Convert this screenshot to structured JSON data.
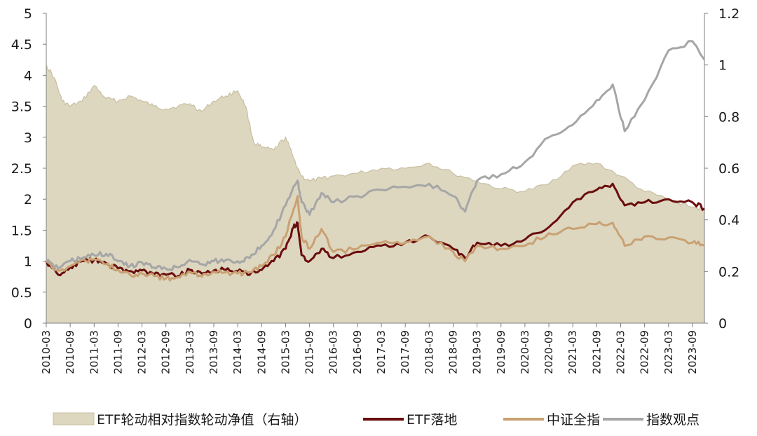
{
  "chart_data": {
    "type": "line",
    "title": "",
    "xlabel": "",
    "ylabel": "",
    "ylim": [
      0,
      5
    ],
    "y2lim": [
      0,
      1.2
    ],
    "yticks": [
      "0",
      "0.5",
      "1",
      "1.5",
      "2",
      "2.5",
      "3",
      "3.5",
      "4",
      "4.5",
      "5"
    ],
    "y2ticks": [
      "0",
      "0.2",
      "0.4",
      "0.6",
      "0.8",
      "1",
      "1.2"
    ],
    "xticks": [
      "2010-03",
      "2010-09",
      "2011-03",
      "2011-09",
      "2012-03",
      "2012-09",
      "2013-03",
      "2013-09",
      "2014-03",
      "2014-09",
      "2015-03",
      "2015-09",
      "2016-03",
      "2016-09",
      "2017-03",
      "2017-09",
      "2018-03",
      "2018-09",
      "2019-03",
      "2019-09",
      "2020-03",
      "2020-09",
      "2021-03",
      "2021-09",
      "2022-03",
      "2022-09",
      "2023-03",
      "2023-09"
    ],
    "legend_position": "bottom",
    "series": [
      {
        "name": "ETF轮动相对指数轮动净值（右轴）",
        "type": "area",
        "axis": "right",
        "color": "#ddd7c0",
        "edge_color": "#c8bfa2",
        "points": [
          [
            "2010-03",
            1.0
          ],
          [
            "2010-05",
            0.95
          ],
          [
            "2010-07",
            0.86
          ],
          [
            "2010-09",
            0.84
          ],
          [
            "2010-12",
            0.86
          ],
          [
            "2011-03",
            0.92
          ],
          [
            "2011-06",
            0.87
          ],
          [
            "2011-09",
            0.86
          ],
          [
            "2011-12",
            0.88
          ],
          [
            "2012-03",
            0.86
          ],
          [
            "2012-06",
            0.84
          ],
          [
            "2012-09",
            0.83
          ],
          [
            "2012-12",
            0.84
          ],
          [
            "2013-03",
            0.85
          ],
          [
            "2013-06",
            0.82
          ],
          [
            "2013-09",
            0.86
          ],
          [
            "2013-12",
            0.88
          ],
          [
            "2014-03",
            0.9
          ],
          [
            "2014-05",
            0.84
          ],
          [
            "2014-07",
            0.7
          ],
          [
            "2014-09",
            0.68
          ],
          [
            "2014-12",
            0.67
          ],
          [
            "2015-03",
            0.72
          ],
          [
            "2015-05",
            0.64
          ],
          [
            "2015-07",
            0.57
          ],
          [
            "2015-09",
            0.55
          ],
          [
            "2015-12",
            0.56
          ],
          [
            "2016-03",
            0.57
          ],
          [
            "2016-09",
            0.58
          ],
          [
            "2017-03",
            0.6
          ],
          [
            "2017-09",
            0.6
          ],
          [
            "2018-03",
            0.62
          ],
          [
            "2018-09",
            0.58
          ],
          [
            "2019-03",
            0.55
          ],
          [
            "2019-09",
            0.52
          ],
          [
            "2020-03",
            0.51
          ],
          [
            "2020-09",
            0.54
          ],
          [
            "2021-03",
            0.61
          ],
          [
            "2021-09",
            0.62
          ],
          [
            "2022-03",
            0.57
          ],
          [
            "2022-09",
            0.51
          ],
          [
            "2023-03",
            0.48
          ],
          [
            "2023-09",
            0.45
          ],
          [
            "2023-12",
            0.44
          ]
        ]
      },
      {
        "name": "ETF落地",
        "type": "line",
        "axis": "left",
        "color": "#6b0d0d",
        "points": [
          [
            "2010-03",
            1.0
          ],
          [
            "2010-06",
            0.78
          ],
          [
            "2010-09",
            0.9
          ],
          [
            "2010-12",
            1.0
          ],
          [
            "2011-03",
            1.02
          ],
          [
            "2011-06",
            0.97
          ],
          [
            "2011-09",
            0.88
          ],
          [
            "2011-12",
            0.84
          ],
          [
            "2012-03",
            0.85
          ],
          [
            "2012-06",
            0.79
          ],
          [
            "2012-09",
            0.78
          ],
          [
            "2012-12",
            0.76
          ],
          [
            "2013-03",
            0.86
          ],
          [
            "2013-06",
            0.8
          ],
          [
            "2013-09",
            0.85
          ],
          [
            "2013-12",
            0.86
          ],
          [
            "2014-03",
            0.84
          ],
          [
            "2014-06",
            0.78
          ],
          [
            "2014-09",
            0.86
          ],
          [
            "2014-12",
            1.0
          ],
          [
            "2015-03",
            1.2
          ],
          [
            "2015-05",
            1.55
          ],
          [
            "2015-06",
            1.62
          ],
          [
            "2015-07",
            1.1
          ],
          [
            "2015-09",
            1.0
          ],
          [
            "2015-12",
            1.2
          ],
          [
            "2016-03",
            1.05
          ],
          [
            "2016-09",
            1.15
          ],
          [
            "2017-03",
            1.25
          ],
          [
            "2017-09",
            1.3
          ],
          [
            "2018-03",
            1.4
          ],
          [
            "2018-09",
            1.2
          ],
          [
            "2018-12",
            1.05
          ],
          [
            "2019-03",
            1.3
          ],
          [
            "2019-09",
            1.25
          ],
          [
            "2020-03",
            1.35
          ],
          [
            "2020-09",
            1.55
          ],
          [
            "2021-03",
            1.95
          ],
          [
            "2021-09",
            2.15
          ],
          [
            "2022-01",
            2.25
          ],
          [
            "2022-04",
            1.9
          ],
          [
            "2022-09",
            1.95
          ],
          [
            "2023-03",
            2.0
          ],
          [
            "2023-09",
            1.95
          ],
          [
            "2023-12",
            1.85
          ]
        ]
      },
      {
        "name": "中证全指",
        "type": "line",
        "axis": "left",
        "color": "#c9a173",
        "points": [
          [
            "2010-03",
            1.0
          ],
          [
            "2010-06",
            0.85
          ],
          [
            "2010-09",
            0.92
          ],
          [
            "2010-12",
            1.02
          ],
          [
            "2011-03",
            1.03
          ],
          [
            "2011-06",
            0.95
          ],
          [
            "2011-09",
            0.86
          ],
          [
            "2011-12",
            0.78
          ],
          [
            "2012-03",
            0.8
          ],
          [
            "2012-06",
            0.76
          ],
          [
            "2012-09",
            0.72
          ],
          [
            "2012-12",
            0.74
          ],
          [
            "2013-03",
            0.82
          ],
          [
            "2013-06",
            0.75
          ],
          [
            "2013-09",
            0.83
          ],
          [
            "2013-12",
            0.82
          ],
          [
            "2014-03",
            0.8
          ],
          [
            "2014-06",
            0.82
          ],
          [
            "2014-09",
            0.92
          ],
          [
            "2014-12",
            1.1
          ],
          [
            "2015-03",
            1.4
          ],
          [
            "2015-06",
            2.05
          ],
          [
            "2015-07",
            1.4
          ],
          [
            "2015-09",
            1.2
          ],
          [
            "2015-12",
            1.52
          ],
          [
            "2016-03",
            1.15
          ],
          [
            "2016-09",
            1.2
          ],
          [
            "2017-03",
            1.3
          ],
          [
            "2017-09",
            1.3
          ],
          [
            "2018-03",
            1.4
          ],
          [
            "2018-09",
            1.15
          ],
          [
            "2018-12",
            1.0
          ],
          [
            "2019-03",
            1.25
          ],
          [
            "2019-09",
            1.2
          ],
          [
            "2020-03",
            1.25
          ],
          [
            "2020-09",
            1.45
          ],
          [
            "2021-03",
            1.52
          ],
          [
            "2021-09",
            1.6
          ],
          [
            "2022-01",
            1.62
          ],
          [
            "2022-04",
            1.25
          ],
          [
            "2022-09",
            1.4
          ],
          [
            "2023-03",
            1.38
          ],
          [
            "2023-09",
            1.3
          ],
          [
            "2023-12",
            1.25
          ]
        ]
      },
      {
        "name": "指数观点",
        "type": "line",
        "axis": "left",
        "color": "#a6a6a6",
        "points": [
          [
            "2010-03",
            1.0
          ],
          [
            "2010-06",
            0.88
          ],
          [
            "2010-09",
            1.0
          ],
          [
            "2010-12",
            1.05
          ],
          [
            "2011-03",
            1.1
          ],
          [
            "2011-06",
            1.12
          ],
          [
            "2011-09",
            1.0
          ],
          [
            "2011-12",
            0.92
          ],
          [
            "2012-03",
            0.98
          ],
          [
            "2012-06",
            0.9
          ],
          [
            "2012-09",
            0.88
          ],
          [
            "2012-12",
            0.9
          ],
          [
            "2013-03",
            1.02
          ],
          [
            "2013-06",
            0.95
          ],
          [
            "2013-09",
            1.0
          ],
          [
            "2013-12",
            1.02
          ],
          [
            "2014-03",
            1.0
          ],
          [
            "2014-06",
            1.05
          ],
          [
            "2014-09",
            1.25
          ],
          [
            "2014-12",
            1.5
          ],
          [
            "2015-03",
            1.9
          ],
          [
            "2015-06",
            2.3
          ],
          [
            "2015-07",
            1.95
          ],
          [
            "2015-09",
            1.75
          ],
          [
            "2015-12",
            2.1
          ],
          [
            "2016-03",
            1.95
          ],
          [
            "2016-09",
            2.05
          ],
          [
            "2017-03",
            2.15
          ],
          [
            "2017-09",
            2.2
          ],
          [
            "2018-03",
            2.25
          ],
          [
            "2018-09",
            2.05
          ],
          [
            "2018-12",
            1.8
          ],
          [
            "2019-03",
            2.3
          ],
          [
            "2019-09",
            2.4
          ],
          [
            "2020-03",
            2.6
          ],
          [
            "2020-09",
            3.0
          ],
          [
            "2021-03",
            3.2
          ],
          [
            "2021-09",
            3.6
          ],
          [
            "2022-01",
            3.85
          ],
          [
            "2022-04",
            3.1
          ],
          [
            "2022-09",
            3.6
          ],
          [
            "2023-03",
            4.4
          ],
          [
            "2023-09",
            4.55
          ],
          [
            "2023-12",
            4.25
          ]
        ]
      }
    ]
  }
}
